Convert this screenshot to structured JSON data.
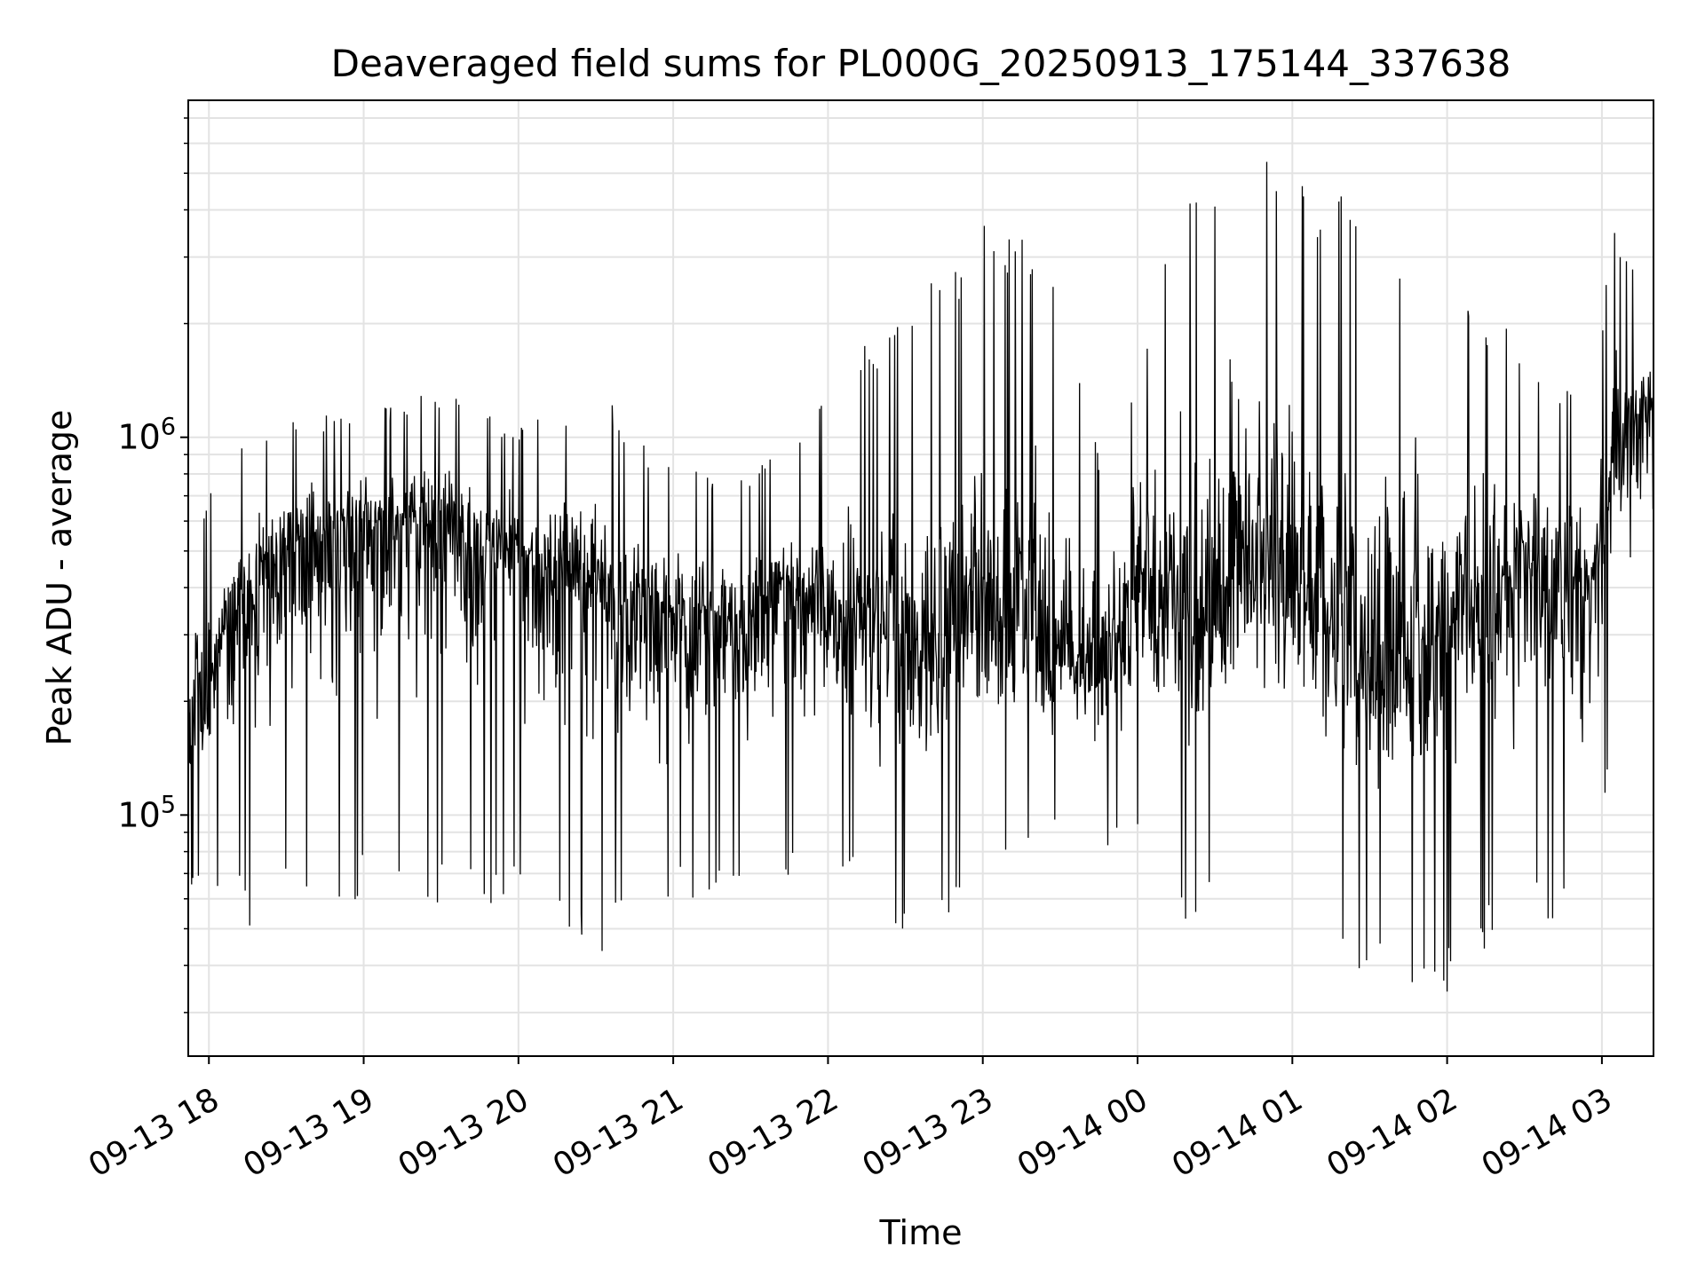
{
  "chart_data": {
    "type": "line",
    "title": "Deaveraged field sums for PL000G_20250913_175144_337638",
    "xlabel": "Time",
    "ylabel": "Peak ADU - average",
    "y_scale": "log",
    "ylim": [
      23000,
      7800000
    ],
    "xlim": [
      "2025-09-13 17:52",
      "2025-09-14 03:20"
    ],
    "grid": true,
    "x_ticks": [
      {
        "t": "2025-09-13 18:00",
        "label": "09-13 18"
      },
      {
        "t": "2025-09-13 19:00",
        "label": "09-13 19"
      },
      {
        "t": "2025-09-13 20:00",
        "label": "09-13 20"
      },
      {
        "t": "2025-09-13 21:00",
        "label": "09-13 21"
      },
      {
        "t": "2025-09-13 22:00",
        "label": "09-13 22"
      },
      {
        "t": "2025-09-13 23:00",
        "label": "09-13 23"
      },
      {
        "t": "2025-09-14 00:00",
        "label": "09-14 00"
      },
      {
        "t": "2025-09-14 01:00",
        "label": "09-14 01"
      },
      {
        "t": "2025-09-14 02:00",
        "label": "09-14 02"
      },
      {
        "t": "2025-09-14 03:00",
        "label": "09-14 03"
      }
    ],
    "y_ticks": [
      {
        "value": 100000,
        "base": "10",
        "exp": "5"
      },
      {
        "value": 1000000,
        "base": "10",
        "exp": "6"
      }
    ],
    "series": [
      {
        "color": "#000000",
        "sample_interval": "5 s",
        "envelope": [
          {
            "t": "2025-09-13 17:52",
            "median": 170000,
            "low": 65000,
            "high": 600000
          },
          {
            "t": "2025-09-13 18:15",
            "median": 400000,
            "low": 50000,
            "high": 1000000
          },
          {
            "t": "2025-09-13 18:40",
            "median": 550000,
            "low": 55000,
            "high": 1150000
          },
          {
            "t": "2025-09-13 19:00",
            "median": 600000,
            "low": 55000,
            "high": 1150000
          },
          {
            "t": "2025-09-13 19:30",
            "median": 560000,
            "low": 55000,
            "high": 1350000
          },
          {
            "t": "2025-09-13 20:00",
            "median": 500000,
            "low": 60000,
            "high": 1050000
          },
          {
            "t": "2025-09-13 20:30",
            "median": 420000,
            "low": 42000,
            "high": 1350000
          },
          {
            "t": "2025-09-13 20:55",
            "median": 330000,
            "low": 55000,
            "high": 900000
          },
          {
            "t": "2025-09-13 21:20",
            "median": 320000,
            "low": 60000,
            "high": 750000
          },
          {
            "t": "2025-09-13 21:45",
            "median": 400000,
            "low": 65000,
            "high": 950000
          },
          {
            "t": "2025-09-13 22:00",
            "median": 330000,
            "low": 70000,
            "high": 1400000
          },
          {
            "t": "2025-09-13 22:30",
            "median": 280000,
            "low": 48000,
            "high": 2300000
          },
          {
            "t": "2025-09-13 23:00",
            "median": 350000,
            "low": 60000,
            "high": 3800000
          },
          {
            "t": "2025-09-13 23:30",
            "median": 260000,
            "low": 85000,
            "high": 3200000
          },
          {
            "t": "2025-09-13 23:45",
            "median": 240000,
            "low": 80000,
            "high": 900000
          },
          {
            "t": "2025-09-14 00:00",
            "median": 380000,
            "low": 75000,
            "high": 1700000
          },
          {
            "t": "2025-09-14 00:20",
            "median": 340000,
            "low": 50000,
            "high": 6000000
          },
          {
            "t": "2025-09-14 00:45",
            "median": 500000,
            "low": 65000,
            "high": 5800000
          },
          {
            "t": "2025-09-14 01:00",
            "median": 420000,
            "low": 65000,
            "high": 5500000
          },
          {
            "t": "2025-09-14 01:30",
            "median": 250000,
            "low": 36000,
            "high": 3900000
          },
          {
            "t": "2025-09-14 02:00",
            "median": 320000,
            "low": 31000,
            "high": 2600000
          },
          {
            "t": "2025-09-14 02:30",
            "median": 450000,
            "low": 55000,
            "high": 1800000
          },
          {
            "t": "2025-09-14 02:55",
            "median": 380000,
            "low": 45000,
            "high": 1200000
          },
          {
            "t": "2025-09-14 03:05",
            "median": 1000000,
            "low": 180000,
            "high": 3800000
          },
          {
            "t": "2025-09-14 03:20",
            "median": 1100000,
            "low": 200000,
            "high": 2600000
          }
        ]
      }
    ]
  }
}
